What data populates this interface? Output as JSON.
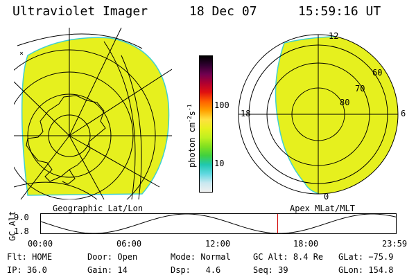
{
  "header": {
    "instrument": "Ultraviolet Imager",
    "date": "18 Dec 07",
    "time": "15:59:16 UT"
  },
  "colors": {
    "aurora_fill": "#e6f01e",
    "edge": "#40d0d0",
    "grid": "#000000"
  },
  "geo_panel": {
    "label": "Geographic Lat/Lon"
  },
  "apex_panel": {
    "label": "Apex MLat/MLT",
    "mlt_labels": [
      "12",
      "18",
      "6",
      "0"
    ],
    "mlat_labels": [
      "60",
      "70",
      "80"
    ]
  },
  "colorbar": {
    "unit_label": "photon cm",
    "unit_exp1": "-2",
    "unit_mid": "s",
    "unit_exp2": "-1",
    "ticks": [
      "100",
      "10"
    ],
    "stops": [
      "#f0f0f0",
      "#c8e8f0",
      "#60d8e0",
      "#20c8b0",
      "#40d040",
      "#80e020",
      "#c0f020",
      "#e6f01e",
      "#ffe040",
      "#ffa000",
      "#ff6000",
      "#e01010",
      "#b00030",
      "#700050",
      "#300030",
      "#000000"
    ]
  },
  "altitude_plot": {
    "ylabel": "GC Alt",
    "ymax_label": "9.0",
    "ymin_label": "1.8",
    "ymin": 1.8,
    "ymax": 9.0,
    "x_ticks": [
      "00:00",
      "06:00",
      "12:00",
      "18:00",
      "23:59"
    ],
    "current_hour": 15.99,
    "curve_color": "#000000",
    "marker_color": "#d00000"
  },
  "status": {
    "row1": [
      {
        "label": "Flt:",
        "value": "HOME"
      },
      {
        "label": "Door:",
        "value": "Open"
      },
      {
        "label": "Mode:",
        "value": "Normal"
      },
      {
        "label": "GC Alt:",
        "value": "8.4 Re"
      },
      {
        "label": "GLat:",
        "value": "−75.9"
      }
    ],
    "row2": [
      {
        "label": "IP:",
        "value": "36.0"
      },
      {
        "label": "Gain:",
        "value": "14"
      },
      {
        "label": "Dsp:",
        "value": "4.6"
      },
      {
        "label": "Seq:",
        "value": "39"
      },
      {
        "label": "GLon:",
        "value": "154.8"
      }
    ]
  }
}
